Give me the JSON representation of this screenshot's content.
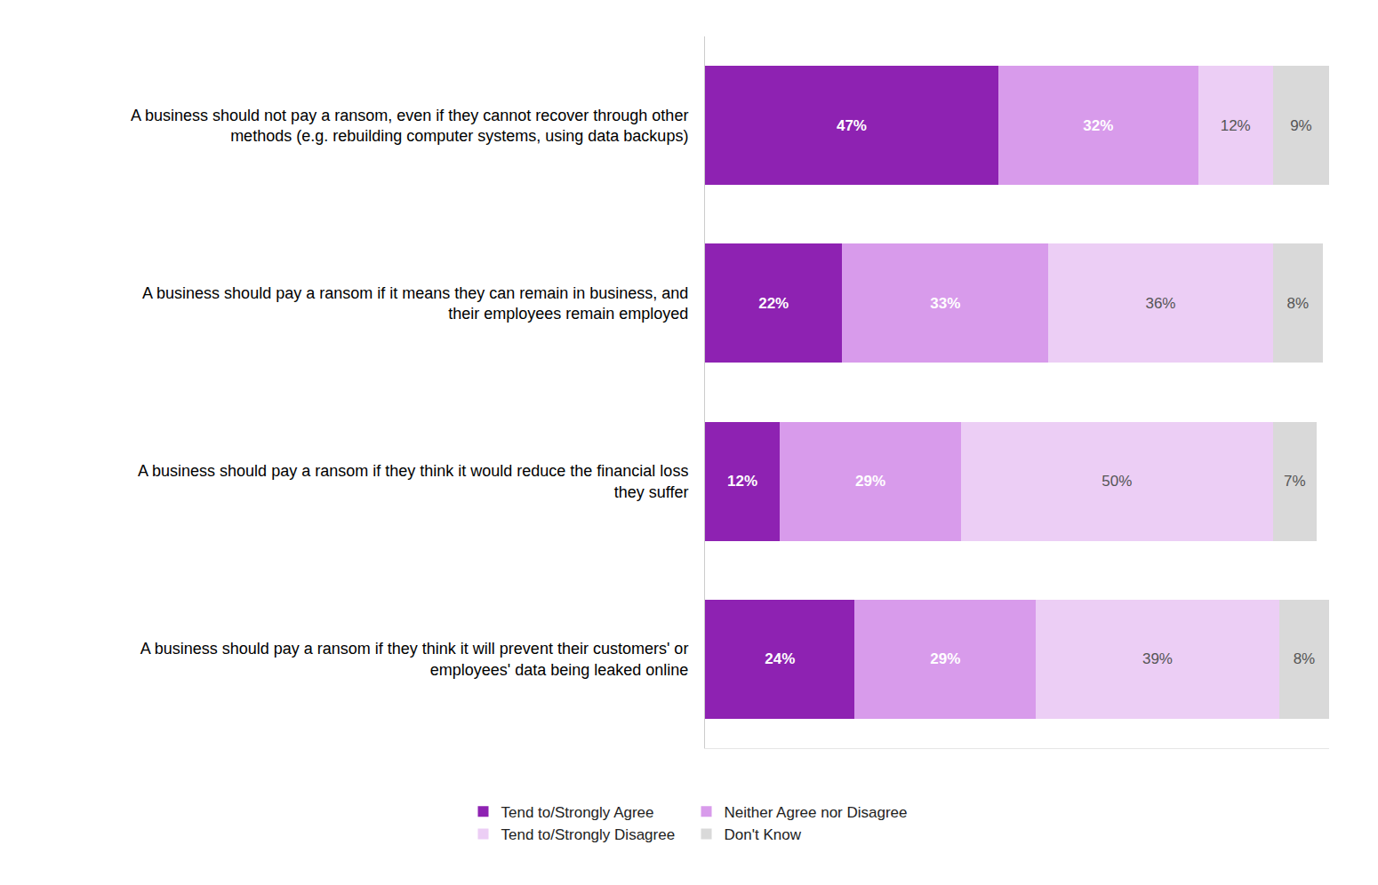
{
  "chart_data": {
    "type": "bar",
    "orientation": "horizontal",
    "stacked": true,
    "data_labels": true,
    "tick_labels": "y",
    "legend": "bottom",
    "grid": false,
    "xlim": [
      0,
      100
    ],
    "categories": [
      "A business should not pay a ransom, even if they cannot recover through other methods (e.g. rebuilding computer systems, using data backups)",
      "A business should pay a ransom if it means they can remain in business, and their employees remain employed",
      "A business should pay a ransom if they think it would reduce the financial loss they suffer",
      "A business should pay a ransom if they think it will prevent their customers' or employees' data being leaked online"
    ],
    "series": [
      {
        "name": "Tend to/Strongly Agree",
        "color": "#8E22B2",
        "values": [
          47,
          22,
          12,
          24
        ],
        "value_labels": [
          "47%",
          "22%",
          "12%",
          "24%"
        ]
      },
      {
        "name": "Neither Agree nor Disagree",
        "color": "#D89BEB",
        "values": [
          32,
          33,
          29,
          29
        ],
        "value_labels": [
          "32%",
          "33%",
          "29%",
          "29%"
        ]
      },
      {
        "name": "Tend to/Strongly Disagree",
        "color": "#ECCEF5",
        "values": [
          12,
          36,
          50,
          39
        ],
        "value_labels": [
          "12%",
          "36%",
          "50%",
          "39%"
        ]
      },
      {
        "name": "Don't Know",
        "color": "#D9D9D9",
        "values": [
          9,
          8,
          7,
          8
        ],
        "value_labels": [
          "9%",
          "8%",
          "7%",
          "8%"
        ]
      }
    ]
  }
}
